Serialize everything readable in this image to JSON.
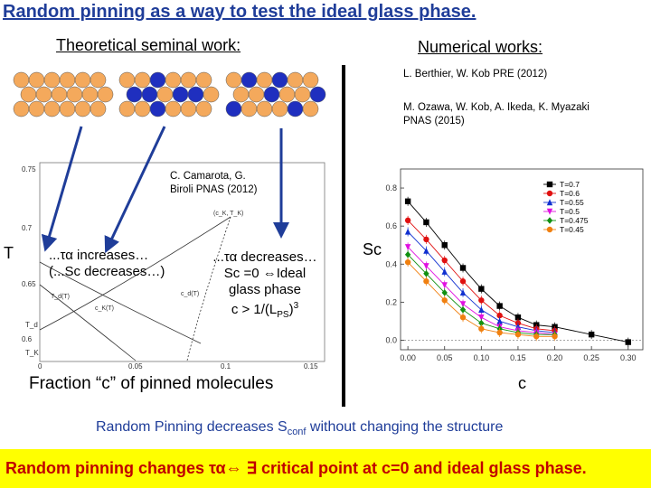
{
  "title": "Random pinning as a way to test the ideal glass phase.",
  "left": {
    "heading": "Theoretical seminal work:",
    "citation_line1": "C. Camarota, G.",
    "citation_line2": "Biroli PNAS (2012)",
    "yaxis_symbol": "T",
    "ticks_y": [
      "0.75",
      "0.7",
      "0.65",
      "T_d",
      "0.6",
      "T_K"
    ],
    "ticks_x": [
      "0",
      "0.05",
      "0.1",
      "0.15"
    ],
    "curve_labels": [
      "T_d(T)",
      "c_d(T)",
      "c_K(T)",
      "(c_K, T_K)"
    ],
    "note_left_line1": "...τα increases…",
    "note_left_line2": "(...Sc decreases…)",
    "note_right_line1": "...τα decreases…",
    "note_right_line2": "Sc =0 ⇔Ideal",
    "note_right_line3": "glass phase",
    "note_right_line4": "c > 1/(L",
    "note_right_sub": "PS",
    "note_right_sup": "3",
    "xaxis_label": "Fraction “c” of pinned molecules"
  },
  "right": {
    "heading": "Numerical works:",
    "ref1": "L. Berthier, W. Kob PRE (2012)",
    "ref2_line1": "M. Ozawa, W. Kob, A. Ikeda, K. Myazaki",
    "ref2_line2": "PNAS (2015)",
    "ylabel": "Sc",
    "xlabel": "c"
  },
  "chart_data": {
    "type": "scatter",
    "xlabel": "c",
    "ylabel": "Sc",
    "xlim": [
      -0.01,
      0.32
    ],
    "ylim": [
      -0.05,
      0.9
    ],
    "x_ticks": [
      "0.00",
      "0.05",
      "0.10",
      "0.15",
      "0.20",
      "0.25",
      "0.30"
    ],
    "y_ticks": [
      "0.0",
      "0.2",
      "0.4",
      "0.6",
      "0.8"
    ],
    "legend_position": "top-right",
    "series": [
      {
        "name": "T=0.7",
        "color": "#000000",
        "marker": "square",
        "x": [
          0.0,
          0.025,
          0.05,
          0.075,
          0.1,
          0.125,
          0.15,
          0.175,
          0.2,
          0.25,
          0.3
        ],
        "y": [
          0.73,
          0.62,
          0.5,
          0.38,
          0.27,
          0.18,
          0.12,
          0.08,
          0.07,
          0.03,
          -0.01
        ]
      },
      {
        "name": "T=0.6",
        "color": "#e01010",
        "marker": "circle",
        "x": [
          0.0,
          0.025,
          0.05,
          0.075,
          0.1,
          0.125,
          0.15,
          0.175,
          0.2
        ],
        "y": [
          0.63,
          0.53,
          0.42,
          0.31,
          0.21,
          0.13,
          0.09,
          0.06,
          0.05
        ]
      },
      {
        "name": "T=0.55",
        "color": "#1030d0",
        "marker": "triangle-up",
        "x": [
          0.0,
          0.025,
          0.05,
          0.075,
          0.1,
          0.125,
          0.15,
          0.175,
          0.2
        ],
        "y": [
          0.57,
          0.47,
          0.36,
          0.25,
          0.16,
          0.1,
          0.07,
          0.05,
          0.04
        ]
      },
      {
        "name": "T=0.5",
        "color": "#e010e0",
        "marker": "triangle-down",
        "x": [
          0.0,
          0.025,
          0.05,
          0.075,
          0.1,
          0.125,
          0.15,
          0.175,
          0.2
        ],
        "y": [
          0.49,
          0.39,
          0.29,
          0.19,
          0.12,
          0.07,
          0.05,
          0.04,
          0.03
        ]
      },
      {
        "name": "T=0.475",
        "color": "#109010",
        "marker": "diamond",
        "x": [
          0.0,
          0.025,
          0.05,
          0.075,
          0.1,
          0.125,
          0.15,
          0.175,
          0.2
        ],
        "y": [
          0.45,
          0.35,
          0.25,
          0.16,
          0.09,
          0.06,
          0.04,
          0.03,
          0.03
        ]
      },
      {
        "name": "T=0.45",
        "color": "#f08010",
        "marker": "circle",
        "x": [
          0.0,
          0.025,
          0.05,
          0.075,
          0.1,
          0.125,
          0.15,
          0.175,
          0.2
        ],
        "y": [
          0.41,
          0.31,
          0.21,
          0.12,
          0.06,
          0.04,
          0.03,
          0.02,
          0.02
        ]
      }
    ]
  },
  "bottom_note": "Random Pinning decreases S",
  "bottom_note_sub": "conf",
  "bottom_note_rest": " without changing the structure",
  "banner": "Random pinning changes τα⇔ ∃ critical point at c=0 and ideal glass phase.",
  "colors": {
    "title": "#1f3d99",
    "banner_bg": "#ffff00",
    "banner_text": "#c00000",
    "arrow": "#1f3d99",
    "orange_particle": "#f4a95c",
    "blue_particle": "#1f2fbf"
  }
}
